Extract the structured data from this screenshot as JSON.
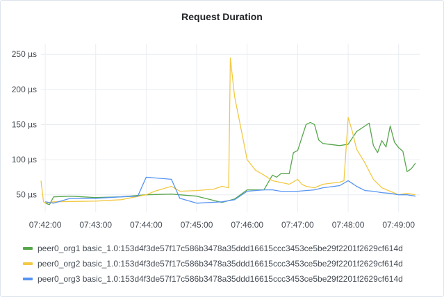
{
  "panel": {
    "title": "Request Duration"
  },
  "colors": {
    "peer0_org1": "#56a64b",
    "peer0_org2": "#f2c943",
    "peer0_org3": "#5794f2",
    "grid": "#e9edf2",
    "text": "#464c54"
  },
  "chart_data": {
    "type": "line",
    "title": "Request Duration",
    "xlabel": "",
    "ylabel": "",
    "x_ticks": [
      "07:42:00",
      "07:43:00",
      "07:44:00",
      "07:45:00",
      "07:46:00",
      "07:47:00",
      "07:48:00",
      "07:49:00"
    ],
    "y_ticks": [
      "50 µs",
      "100 µs",
      "150 µs",
      "200 µs",
      "250 µs"
    ],
    "y_tick_values": [
      50,
      100,
      150,
      200,
      250
    ],
    "xlim": [
      "07:41:55",
      "07:49:25"
    ],
    "ylim": [
      25,
      265
    ],
    "grid": true,
    "legend_position": "bottom",
    "series": [
      {
        "name": "peer0_org1 basic_1.0:153d4f3de57f17c586b3478a35ddd16615ccc3453ce5be29f2201f2629cf614d",
        "color": "#56a64b",
        "x": [
          "07:42:00",
          "07:42:05",
          "07:42:10",
          "07:42:30",
          "07:43:00",
          "07:43:30",
          "07:44:00",
          "07:44:30",
          "07:45:00",
          "07:45:30",
          "07:45:45",
          "07:46:00",
          "07:46:20",
          "07:46:30",
          "07:46:35",
          "07:46:40",
          "07:46:50",
          "07:46:55",
          "07:47:00",
          "07:47:10",
          "07:47:15",
          "07:47:20",
          "07:47:25",
          "07:47:30",
          "07:47:50",
          "07:48:00",
          "07:48:10",
          "07:48:20",
          "07:48:25",
          "07:48:30",
          "07:48:35",
          "07:48:40",
          "07:48:45",
          "07:48:50",
          "07:48:55",
          "07:49:00",
          "07:49:05",
          "07:49:10",
          "07:49:15",
          "07:49:20"
        ],
        "y": [
          38,
          36,
          47,
          48,
          46,
          47,
          50,
          51,
          48,
          39,
          44,
          57,
          57,
          78,
          75,
          80,
          80,
          110,
          113,
          150,
          153,
          150,
          128,
          123,
          120,
          122,
          140,
          148,
          152,
          120,
          110,
          127,
          118,
          148,
          125,
          117,
          112,
          83,
          87,
          95
        ]
      },
      {
        "name": "peer0_org2 basic_1.0:153d4f3de57f17c586b3478a35ddd16615ccc3453ce5be29f2201f2629cf614d",
        "color": "#f2c943",
        "x": [
          "07:41:55",
          "07:41:58",
          "07:42:00",
          "07:42:10",
          "07:43:00",
          "07:43:30",
          "07:44:00",
          "07:44:10",
          "07:44:30",
          "07:44:40",
          "07:45:00",
          "07:45:20",
          "07:45:30",
          "07:45:38",
          "07:45:40",
          "07:45:45",
          "07:45:55",
          "07:46:00",
          "07:46:10",
          "07:46:20",
          "07:46:30",
          "07:46:50",
          "07:47:00",
          "07:47:05",
          "07:47:10",
          "07:47:20",
          "07:47:30",
          "07:47:50",
          "07:47:55",
          "07:48:00",
          "07:48:05",
          "07:48:10",
          "07:48:20",
          "07:48:30",
          "07:48:40",
          "07:48:50",
          "07:49:00",
          "07:49:10",
          "07:49:20"
        ],
        "y": [
          70,
          40,
          38,
          40,
          41,
          43,
          50,
          55,
          62,
          55,
          56,
          58,
          62,
          60,
          245,
          190,
          130,
          100,
          85,
          78,
          70,
          65,
          72,
          65,
          62,
          60,
          65,
          68,
          70,
          160,
          140,
          115,
          95,
          72,
          60,
          55,
          50,
          52,
          50
        ]
      },
      {
        "name": "peer0_org3 basic_1.0:153d4f3de57f17c586b3478a35ddd16615ccc3453ce5be29f2201f2629cf614d",
        "color": "#5794f2",
        "x": [
          "07:42:00",
          "07:42:10",
          "07:42:30",
          "07:43:00",
          "07:43:30",
          "07:43:50",
          "07:44:00",
          "07:44:30",
          "07:44:40",
          "07:45:00",
          "07:45:30",
          "07:45:45",
          "07:46:00",
          "07:46:20",
          "07:46:30",
          "07:46:40",
          "07:46:50",
          "07:47:00",
          "07:47:20",
          "07:47:30",
          "07:47:50",
          "07:48:00",
          "07:48:10",
          "07:48:20",
          "07:48:30",
          "07:48:40",
          "07:48:50",
          "07:49:00",
          "07:49:10",
          "07:49:20"
        ],
        "y": [
          40,
          38,
          45,
          45,
          47,
          48,
          75,
          72,
          45,
          38,
          40,
          43,
          55,
          57,
          57,
          55,
          55,
          55,
          57,
          60,
          63,
          70,
          62,
          56,
          55,
          53,
          52,
          50,
          50,
          48
        ]
      }
    ]
  }
}
